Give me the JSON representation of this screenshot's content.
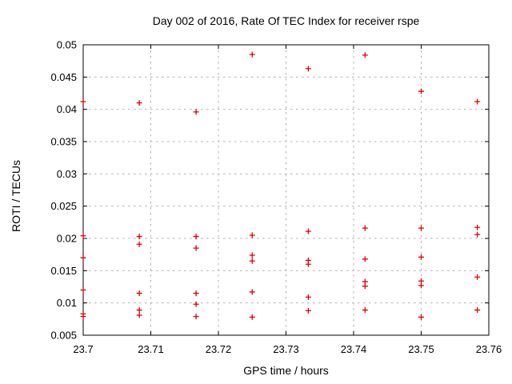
{
  "title": "Day 002 of 2016, Rate Of TEC Index for receiver rspe",
  "colors": {
    "marker": "#e00000",
    "grid": "#b0b0b0",
    "axis": "#000000",
    "background": "#ffffff",
    "text": "#000000"
  },
  "chart_data": {
    "type": "scatter",
    "title": "Day 002 of 2016, Rate Of TEC Index for receiver rspe",
    "xlabel": "GPS time / hours",
    "ylabel": "ROTI / TECUs",
    "xlim": [
      23.7,
      23.76
    ],
    "ylim": [
      0.005,
      0.05
    ],
    "xtick_values": [
      23.7,
      23.71,
      23.72,
      23.73,
      23.74,
      23.75,
      23.76
    ],
    "xtick_labels": [
      "23.7",
      "23.71",
      "23.72",
      "23.73",
      "23.74",
      "23.75",
      "23.76"
    ],
    "ytick_values": [
      0.005,
      0.01,
      0.015,
      0.02,
      0.025,
      0.03,
      0.035,
      0.04,
      0.045,
      0.05
    ],
    "ytick_labels": [
      "0.005",
      "0.01",
      "0.015",
      "0.02",
      "0.025",
      "0.03",
      "0.035",
      "0.04",
      "0.045",
      "0.05"
    ],
    "grid": true,
    "legend": false,
    "marker": "plus",
    "points": [
      [
        23.7,
        0.0412
      ],
      [
        23.7,
        0.0204
      ],
      [
        23.7,
        0.017
      ],
      [
        23.7,
        0.012
      ],
      [
        23.7,
        0.0083
      ],
      [
        23.7,
        0.0079
      ],
      [
        23.7083,
        0.041
      ],
      [
        23.7083,
        0.0203
      ],
      [
        23.7083,
        0.0191
      ],
      [
        23.7083,
        0.0115
      ],
      [
        23.7083,
        0.0089
      ],
      [
        23.7083,
        0.0081
      ],
      [
        23.7167,
        0.0396
      ],
      [
        23.7167,
        0.0203
      ],
      [
        23.7167,
        0.0185
      ],
      [
        23.7167,
        0.0115
      ],
      [
        23.7167,
        0.0098
      ],
      [
        23.7167,
        0.0079
      ],
      [
        23.725,
        0.0485
      ],
      [
        23.725,
        0.0205
      ],
      [
        23.725,
        0.0174
      ],
      [
        23.725,
        0.0165
      ],
      [
        23.725,
        0.0117
      ],
      [
        23.725,
        0.0078
      ],
      [
        23.7333,
        0.0463
      ],
      [
        23.7333,
        0.0211
      ],
      [
        23.7333,
        0.0166
      ],
      [
        23.7333,
        0.016
      ],
      [
        23.7333,
        0.0109
      ],
      [
        23.7333,
        0.0088
      ],
      [
        23.7417,
        0.0484
      ],
      [
        23.7417,
        0.0216
      ],
      [
        23.7417,
        0.0168
      ],
      [
        23.7417,
        0.0133
      ],
      [
        23.7417,
        0.0126
      ],
      [
        23.7417,
        0.0089
      ],
      [
        23.75,
        0.0428
      ],
      [
        23.75,
        0.0216
      ],
      [
        23.75,
        0.0171
      ],
      [
        23.75,
        0.0134
      ],
      [
        23.75,
        0.0127
      ],
      [
        23.75,
        0.0078
      ],
      [
        23.7583,
        0.0412
      ],
      [
        23.7583,
        0.0217
      ],
      [
        23.7583,
        0.0206
      ],
      [
        23.7583,
        0.014
      ],
      [
        23.7583,
        0.0089
      ]
    ]
  }
}
